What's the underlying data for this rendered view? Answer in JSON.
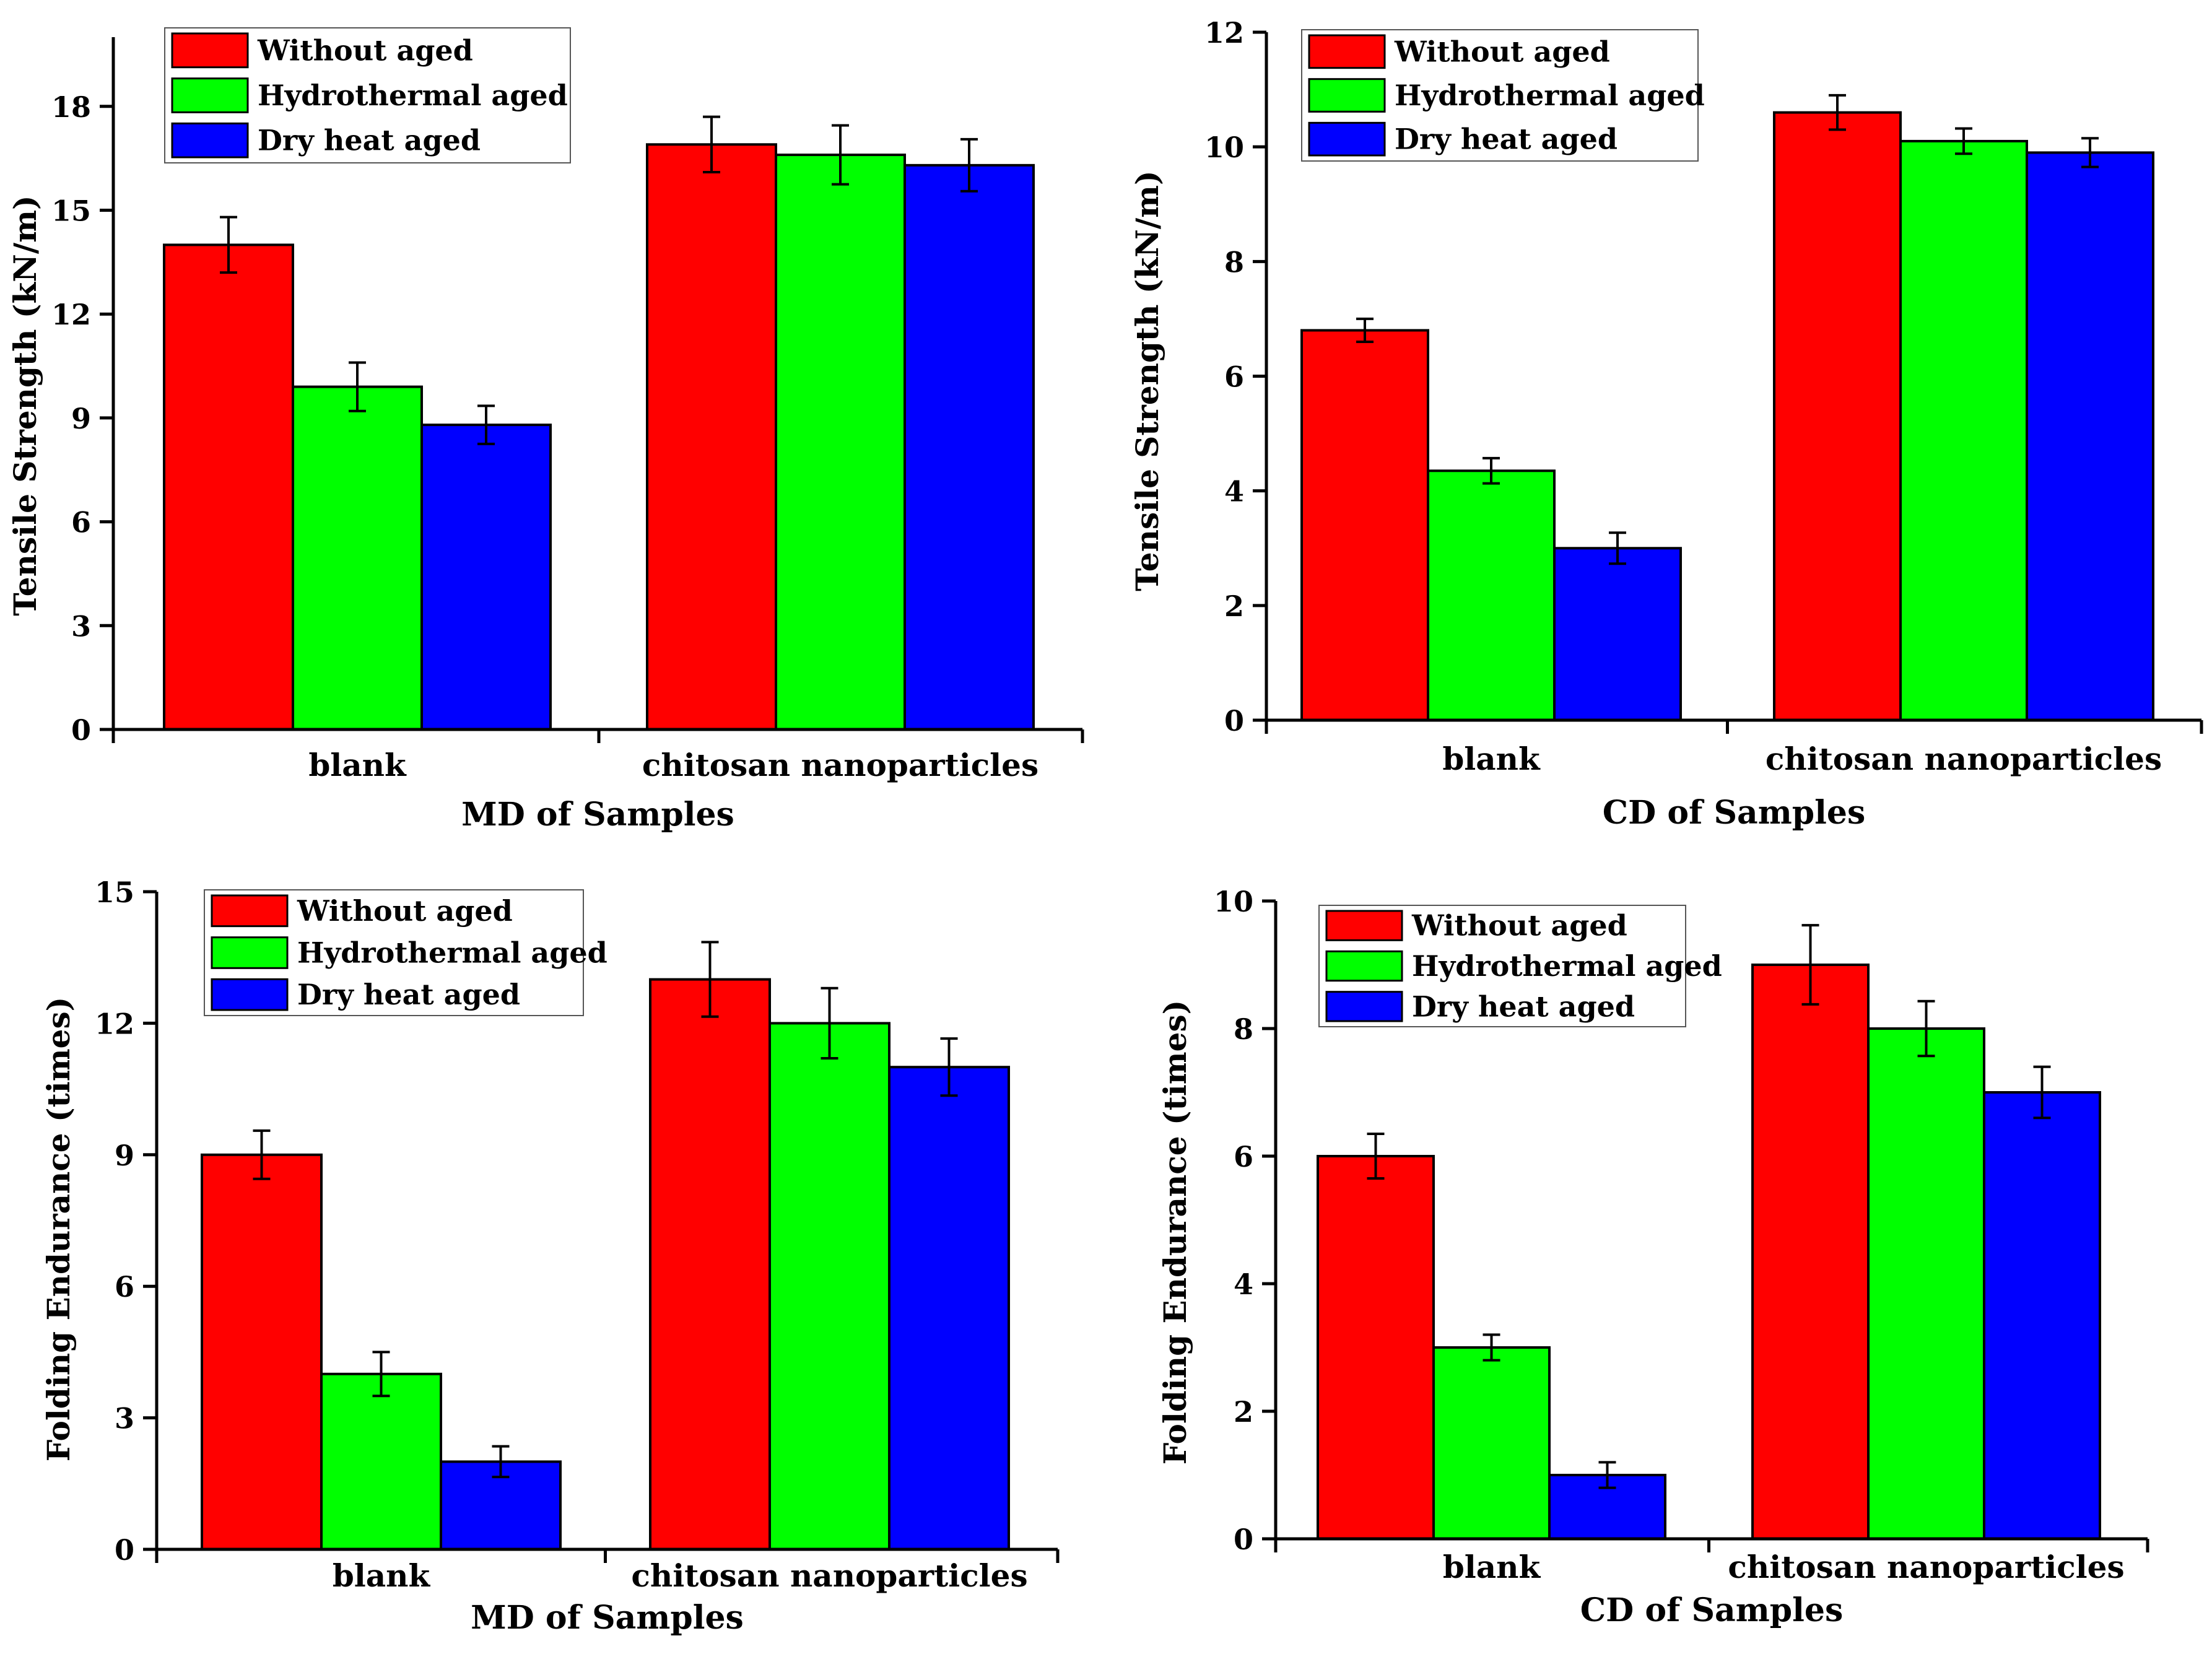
{
  "chart_data": [
    {
      "id": "md-tensile",
      "type": "bar",
      "categories": [
        "blank",
        "chitosan nanoparticles"
      ],
      "series": [
        {
          "name": "Without aged",
          "color": "#ff0000",
          "values": [
            14.0,
            16.9
          ],
          "errors": [
            0.8,
            0.8
          ]
        },
        {
          "name": "Hydrothermal aged",
          "color": "#00ff00",
          "values": [
            9.9,
            16.6
          ],
          "errors": [
            0.7,
            0.85
          ]
        },
        {
          "name": "Dry heat aged",
          "color": "#0000ff",
          "values": [
            8.8,
            16.3
          ],
          "errors": [
            0.55,
            0.75
          ]
        }
      ],
      "title": "",
      "xlabel": "MD of Samples",
      "ylabel": "Tensile Strength (kN/m)",
      "ylim": [
        0,
        20
      ],
      "yticks": [
        0,
        3,
        6,
        9,
        12,
        15,
        18
      ],
      "legend": "top-left",
      "grid": false
    },
    {
      "id": "cd-tensile",
      "type": "bar",
      "categories": [
        "blank",
        "chitosan nanoparticles"
      ],
      "series": [
        {
          "name": "Without aged",
          "color": "#ff0000",
          "values": [
            6.8,
            10.6
          ],
          "errors": [
            0.2,
            0.3
          ]
        },
        {
          "name": "Hydrothermal aged",
          "color": "#00ff00",
          "values": [
            4.35,
            10.1
          ],
          "errors": [
            0.22,
            0.22
          ]
        },
        {
          "name": "Dry heat aged",
          "color": "#0000ff",
          "values": [
            3.0,
            9.9
          ],
          "errors": [
            0.27,
            0.25
          ]
        }
      ],
      "title": "",
      "xlabel": "CD of Samples",
      "ylabel": "Tensile Strength (kN/m)",
      "ylim": [
        0,
        12
      ],
      "yticks": [
        0,
        2,
        4,
        6,
        8,
        10,
        12
      ],
      "legend": "top-left",
      "grid": false
    },
    {
      "id": "md-folding",
      "type": "bar",
      "categories": [
        "blank",
        "chitosan nanoparticles"
      ],
      "series": [
        {
          "name": "Without aged",
          "color": "#ff0000",
          "values": [
            9,
            13
          ],
          "errors": [
            0.55,
            0.85
          ]
        },
        {
          "name": "Hydrothermal aged",
          "color": "#00ff00",
          "values": [
            4,
            12
          ],
          "errors": [
            0.5,
            0.8
          ]
        },
        {
          "name": "Dry heat aged",
          "color": "#0000ff",
          "values": [
            2,
            11
          ],
          "errors": [
            0.35,
            0.65
          ]
        }
      ],
      "title": "",
      "xlabel": "MD of Samples",
      "ylabel": "Folding Endurance (times)",
      "ylim": [
        0,
        15
      ],
      "yticks": [
        0,
        3,
        6,
        9,
        12,
        15
      ],
      "legend": "top-left",
      "grid": false
    },
    {
      "id": "cd-folding",
      "type": "bar",
      "categories": [
        "blank",
        "chitosan nanoparticles"
      ],
      "series": [
        {
          "name": "Without aged",
          "color": "#ff0000",
          "values": [
            6,
            9
          ],
          "errors": [
            0.35,
            0.62
          ]
        },
        {
          "name": "Hydrothermal aged",
          "color": "#00ff00",
          "values": [
            3,
            8
          ],
          "errors": [
            0.2,
            0.43
          ]
        },
        {
          "name": "Dry heat aged",
          "color": "#0000ff",
          "values": [
            1,
            7
          ],
          "errors": [
            0.2,
            0.4
          ]
        }
      ],
      "title": "",
      "xlabel": "CD of Samples",
      "ylabel": "Folding Endurance (times)",
      "ylim": [
        0,
        10
      ],
      "yticks": [
        0,
        2,
        4,
        6,
        8,
        10
      ],
      "legend": "top-left",
      "grid": false
    }
  ]
}
